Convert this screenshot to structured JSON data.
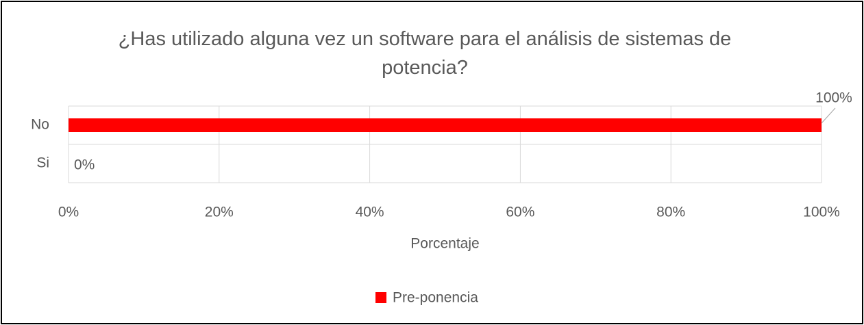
{
  "chart_data": {
    "type": "barh",
    "title": "¿Has utilizado alguna vez un software para el análisis de sistemas de potencia?",
    "categories": [
      "No",
      "Si"
    ],
    "series": [
      {
        "name": "Pre-ponencia",
        "color": "#ff0000",
        "values": [
          100,
          0
        ],
        "value_labels": [
          "100%",
          "0%"
        ]
      }
    ],
    "xlim": [
      0,
      100
    ],
    "xticks": [
      {
        "value": 0,
        "label": "0%"
      },
      {
        "value": 20,
        "label": "20%"
      },
      {
        "value": 40,
        "label": "40%"
      },
      {
        "value": 60,
        "label": "60%"
      },
      {
        "value": 80,
        "label": "80%"
      },
      {
        "value": 100,
        "label": "100%"
      }
    ],
    "xlabel": "Porcentaje",
    "grid": true,
    "legend": "bottom"
  }
}
